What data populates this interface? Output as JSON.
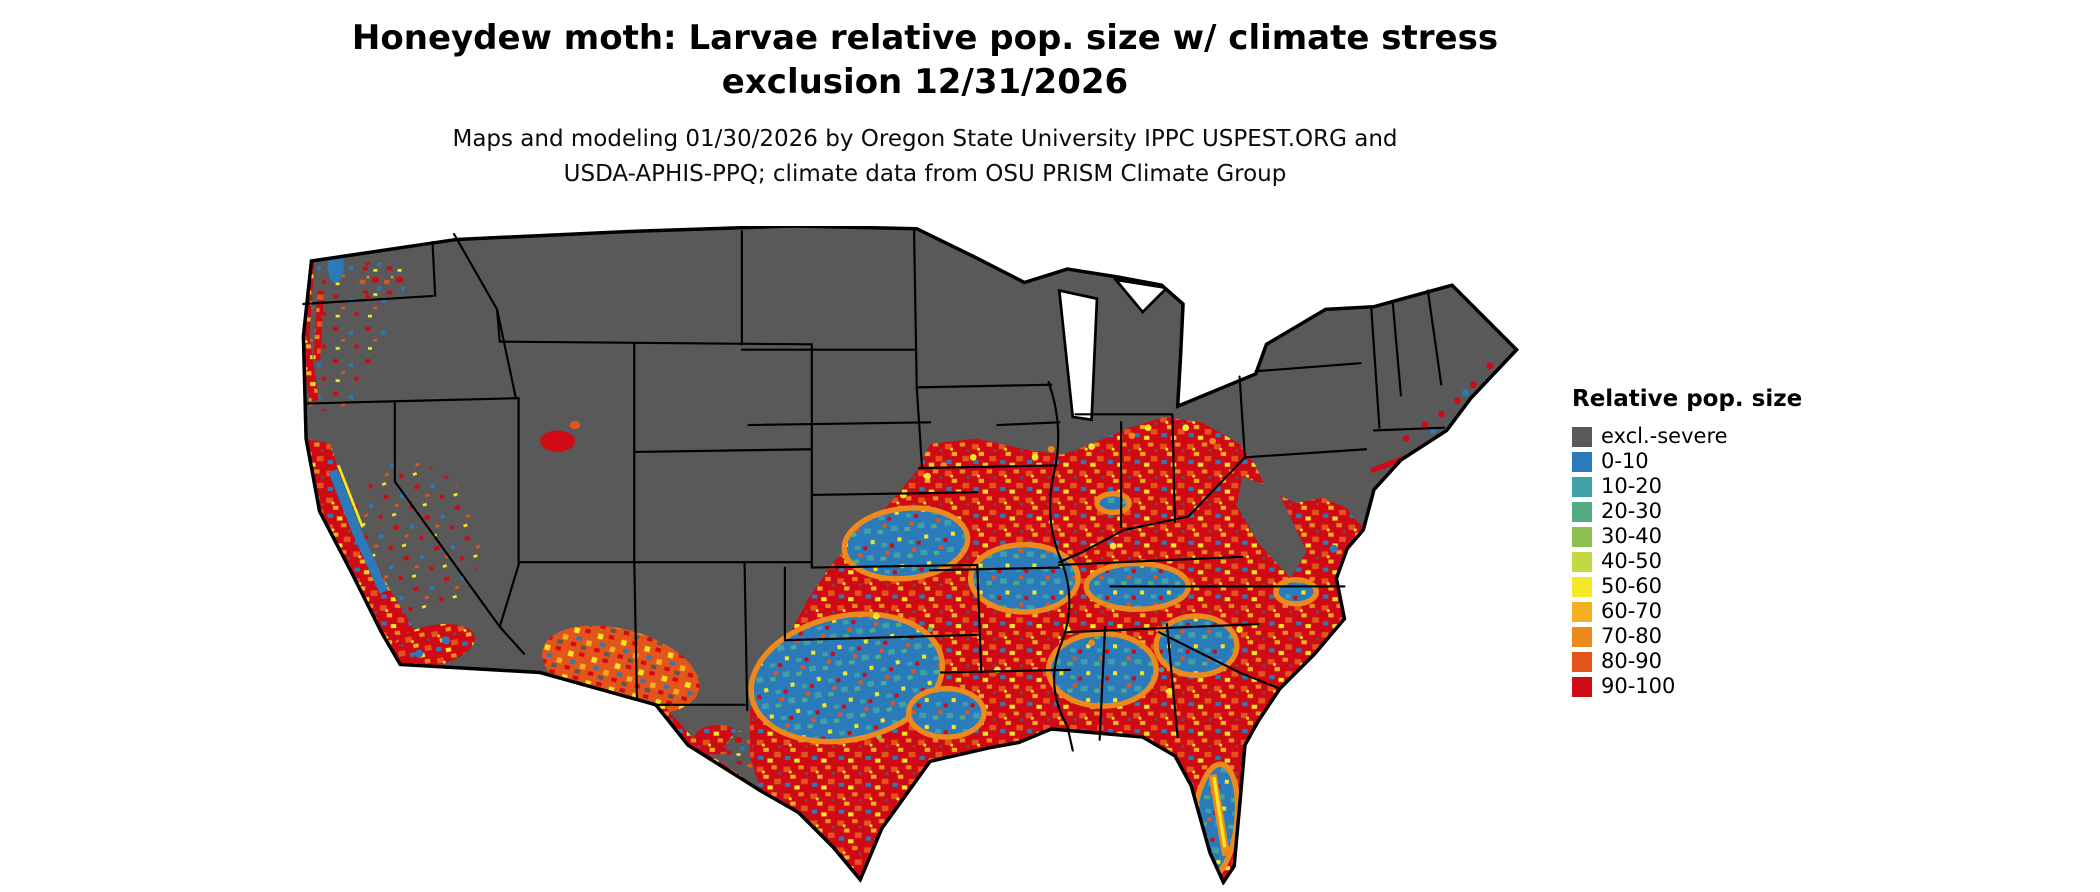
{
  "header": {
    "title_line1": "Honeydew moth: Larvae relative pop. size w/ climate stress",
    "title_line2": "exclusion 12/31/2026",
    "subtitle_line1": "Maps and modeling 01/30/2026 by Oregon State University IPPC USPEST.ORG and",
    "subtitle_line2": "USDA-APHIS-PPQ; climate data from OSU PRISM Climate Group"
  },
  "legend": {
    "title": "Relative pop. size",
    "items": [
      {
        "label": "excl.-severe",
        "color": "#595959"
      },
      {
        "label": "0-10",
        "color": "#2b7bba"
      },
      {
        "label": "10-20",
        "color": "#3fa0a8"
      },
      {
        "label": "20-30",
        "color": "#52ab83"
      },
      {
        "label": "30-40",
        "color": "#8dc050"
      },
      {
        "label": "40-50",
        "color": "#c2d944"
      },
      {
        "label": "50-60",
        "color": "#f5e626"
      },
      {
        "label": "60-70",
        "color": "#f2b022"
      },
      {
        "label": "70-80",
        "color": "#ed8a1e"
      },
      {
        "label": "80-90",
        "color": "#e3551b"
      },
      {
        "label": "90-100",
        "color": "#cf0a15"
      }
    ]
  }
}
